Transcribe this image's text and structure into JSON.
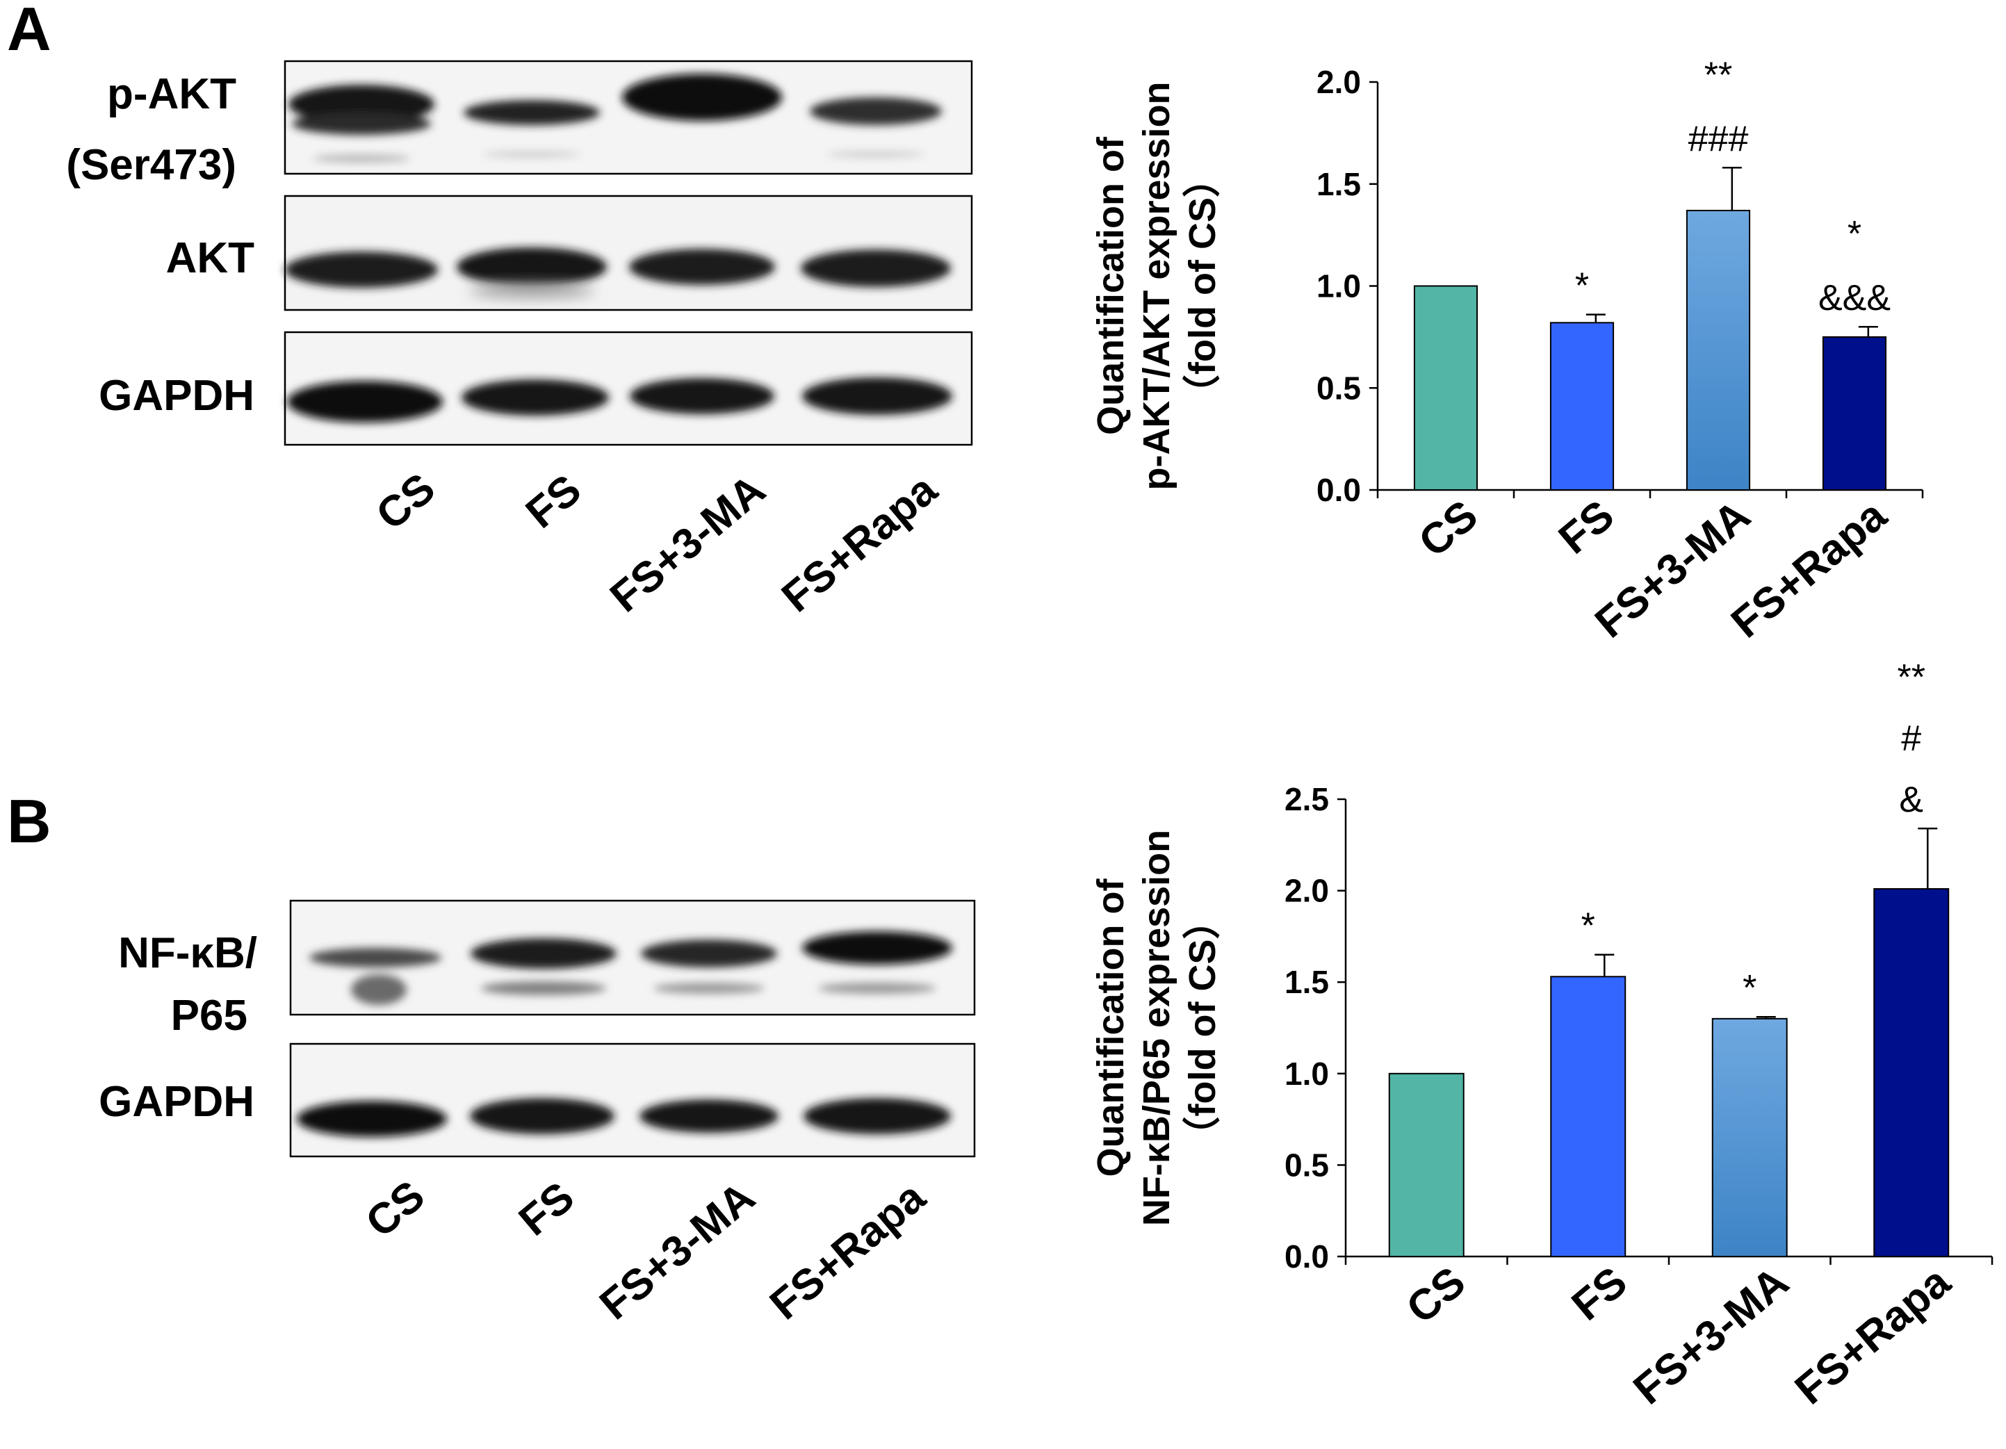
{
  "panel_a": {
    "letter": "A",
    "blot": {
      "rows": [
        {
          "label_lines": [
            "p-AKT",
            "(Ser473)"
          ]
        },
        {
          "label_lines": [
            "AKT"
          ]
        },
        {
          "label_lines": [
            "GAPDH"
          ]
        }
      ],
      "lanes": [
        "CS",
        "FS",
        "FS+3-MA",
        "FS+Rapa"
      ]
    }
  },
  "panel_b": {
    "letter": "B",
    "blot": {
      "rows": [
        {
          "label_lines": [
            "NF-κB/",
            "P65"
          ]
        },
        {
          "label_lines": [
            "GAPDH"
          ]
        }
      ],
      "lanes": [
        "CS",
        "FS",
        "FS+3-MA",
        "FS+Rapa"
      ]
    }
  },
  "chart_data": [
    {
      "type": "bar",
      "panel": "A",
      "categories": [
        "CS",
        "FS",
        "FS+3-MA",
        "FS+Rapa"
      ],
      "values": [
        1.0,
        0.82,
        1.37,
        0.75
      ],
      "errors": [
        0,
        0.04,
        0.21,
        0.05
      ],
      "annotations": [
        [],
        [
          "*"
        ],
        [
          "**",
          "###"
        ],
        [
          "*",
          "&&&"
        ]
      ],
      "ylabel_lines": [
        "Quantification of",
        "p-AKT/AKT expression",
        "（fold of CS）"
      ],
      "ylim": [
        0,
        2.0
      ],
      "yticks": [
        "0.0",
        "0.5",
        "1.0",
        "1.5",
        "2.0"
      ],
      "colors": [
        "#52b5a5",
        "#3366ff",
        "#5b9bd5",
        "#000f8c"
      ],
      "grid": false
    },
    {
      "type": "bar",
      "panel": "B",
      "categories": [
        "CS",
        "FS",
        "FS+3-MA",
        "FS+Rapa"
      ],
      "values": [
        1.0,
        1.53,
        1.3,
        2.01
      ],
      "errors": [
        0,
        0.12,
        0.01,
        0.33
      ],
      "annotations": [
        [],
        [
          "*"
        ],
        [
          "*"
        ],
        [
          "**",
          "#",
          "&"
        ]
      ],
      "ylabel_lines": [
        "Quantification of",
        "NF-κB/P65 expression",
        "（fold of CS）"
      ],
      "ylim": [
        0,
        2.5
      ],
      "yticks": [
        "0.0",
        "0.5",
        "1.0",
        "1.5",
        "2.0",
        "2.5"
      ],
      "colors": [
        "#52b5a5",
        "#3366ff",
        "#5b9bd5",
        "#000f8c"
      ],
      "grid": false
    }
  ]
}
